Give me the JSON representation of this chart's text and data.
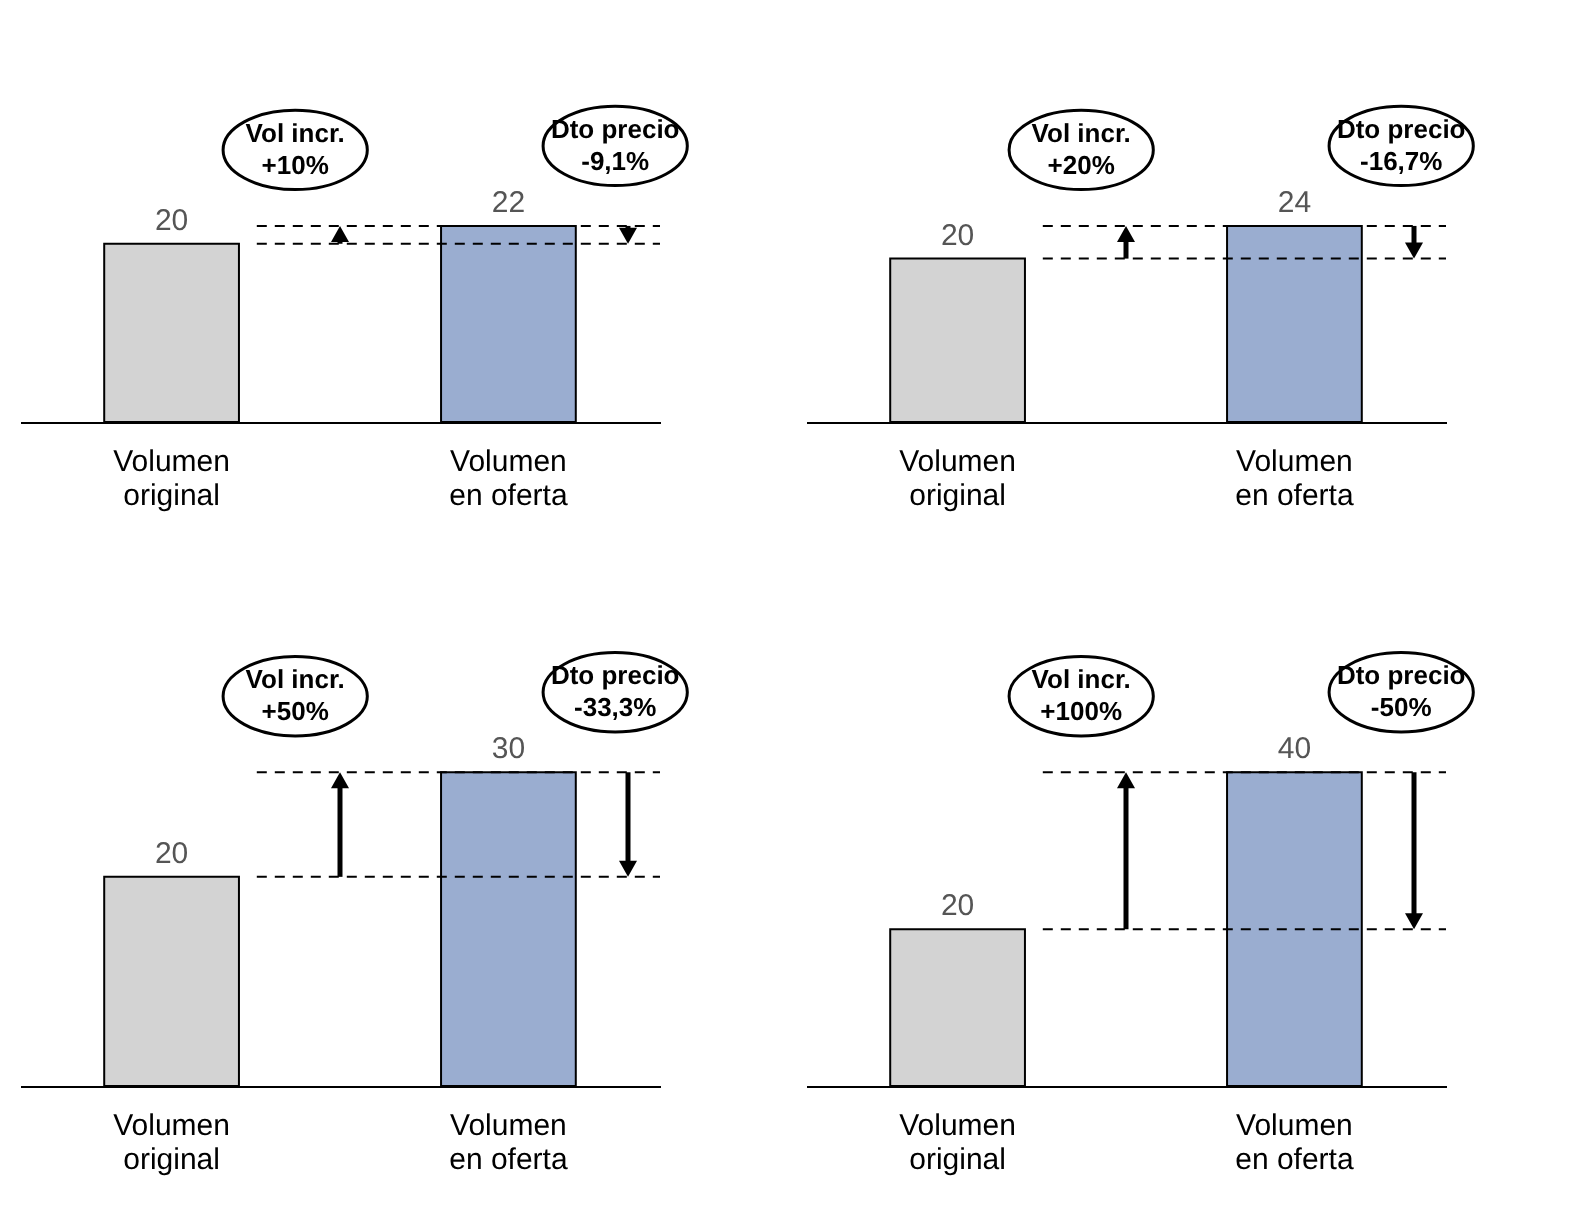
{
  "chart_data": [
    {
      "type": "bar",
      "categories": [
        "Volumen\noriginal",
        "Volumen\nen oferta"
      ],
      "values": [
        20,
        22
      ],
      "colors": [
        "#d3d3d3",
        "#9aadd0"
      ],
      "data_labels": true,
      "tick_labels": "x",
      "ref_lines": [
        {
          "axis": "y",
          "value": 20,
          "line_style": "dashed"
        },
        {
          "axis": "y",
          "value": 22,
          "line_style": "dashed"
        }
      ],
      "annotations": [
        "Vol incr.\n+10%",
        "Dto precio\n-9,1%"
      ]
    },
    {
      "type": "bar",
      "categories": [
        "Volumen\noriginal",
        "Volumen\nen oferta"
      ],
      "values": [
        20,
        24
      ],
      "colors": [
        "#d3d3d3",
        "#9aadd0"
      ],
      "data_labels": true,
      "tick_labels": "x",
      "ref_lines": [
        {
          "axis": "y",
          "value": 20,
          "line_style": "dashed"
        },
        {
          "axis": "y",
          "value": 24,
          "line_style": "dashed"
        }
      ],
      "annotations": [
        "Vol incr.\n+20%",
        "Dto precio\n-16,7%"
      ]
    },
    {
      "type": "bar",
      "categories": [
        "Volumen\noriginal",
        "Volumen\nen oferta"
      ],
      "values": [
        20,
        30
      ],
      "colors": [
        "#d3d3d3",
        "#9aadd0"
      ],
      "data_labels": true,
      "tick_labels": "x",
      "ref_lines": [
        {
          "axis": "y",
          "value": 20,
          "line_style": "dashed"
        },
        {
          "axis": "y",
          "value": 30,
          "line_style": "dashed"
        }
      ],
      "annotations": [
        "Vol incr.\n+50%",
        "Dto precio\n-33,3%"
      ]
    },
    {
      "type": "bar",
      "categories": [
        "Volumen\noriginal",
        "Volumen\nen oferta"
      ],
      "values": [
        20,
        40
      ],
      "colors": [
        "#d3d3d3",
        "#9aadd0"
      ],
      "data_labels": true,
      "tick_labels": "x",
      "ref_lines": [
        {
          "axis": "y",
          "value": 20,
          "line_style": "dashed"
        },
        {
          "axis": "y",
          "value": 40,
          "line_style": "dashed"
        }
      ],
      "annotations": [
        "Vol incr.\n+100%",
        "Dto precio\n-50%"
      ]
    }
  ]
}
